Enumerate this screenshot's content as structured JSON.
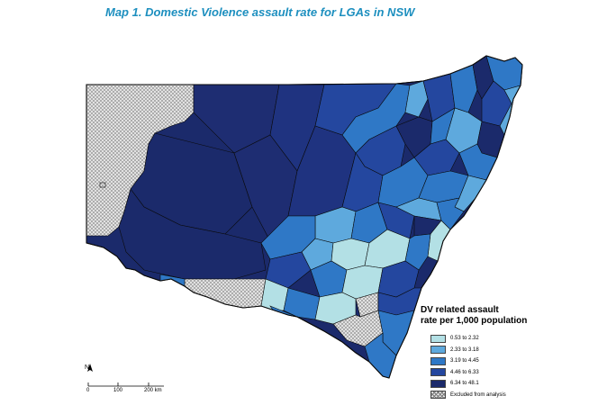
{
  "title": "Map 1.  Domestic Violence assault rate for LGAs in NSW",
  "legend": {
    "title_line1": "DV related assault",
    "title_line2": "rate per 1,000 population",
    "items": [
      {
        "label": "0.53 to 2.32",
        "color": "#b3e0e5"
      },
      {
        "label": "2.33 to 3.18",
        "color": "#5ea9dd"
      },
      {
        "label": "3.19 to 4.45",
        "color": "#2f78c6"
      },
      {
        "label": "4.46 to 6.33",
        "color": "#24479f"
      },
      {
        "label": "6.34 to 48.1",
        "color": "#1b2a6b"
      },
      {
        "label": "Excluded from analysis",
        "color": "hatch"
      }
    ]
  },
  "scale": {
    "north_label": "N",
    "ticks": [
      "0",
      "100",
      "200 km"
    ]
  },
  "colors": {
    "excluded": "#e6e6e6",
    "border": "#0a0a0a",
    "title": "#1d8fbf"
  }
}
